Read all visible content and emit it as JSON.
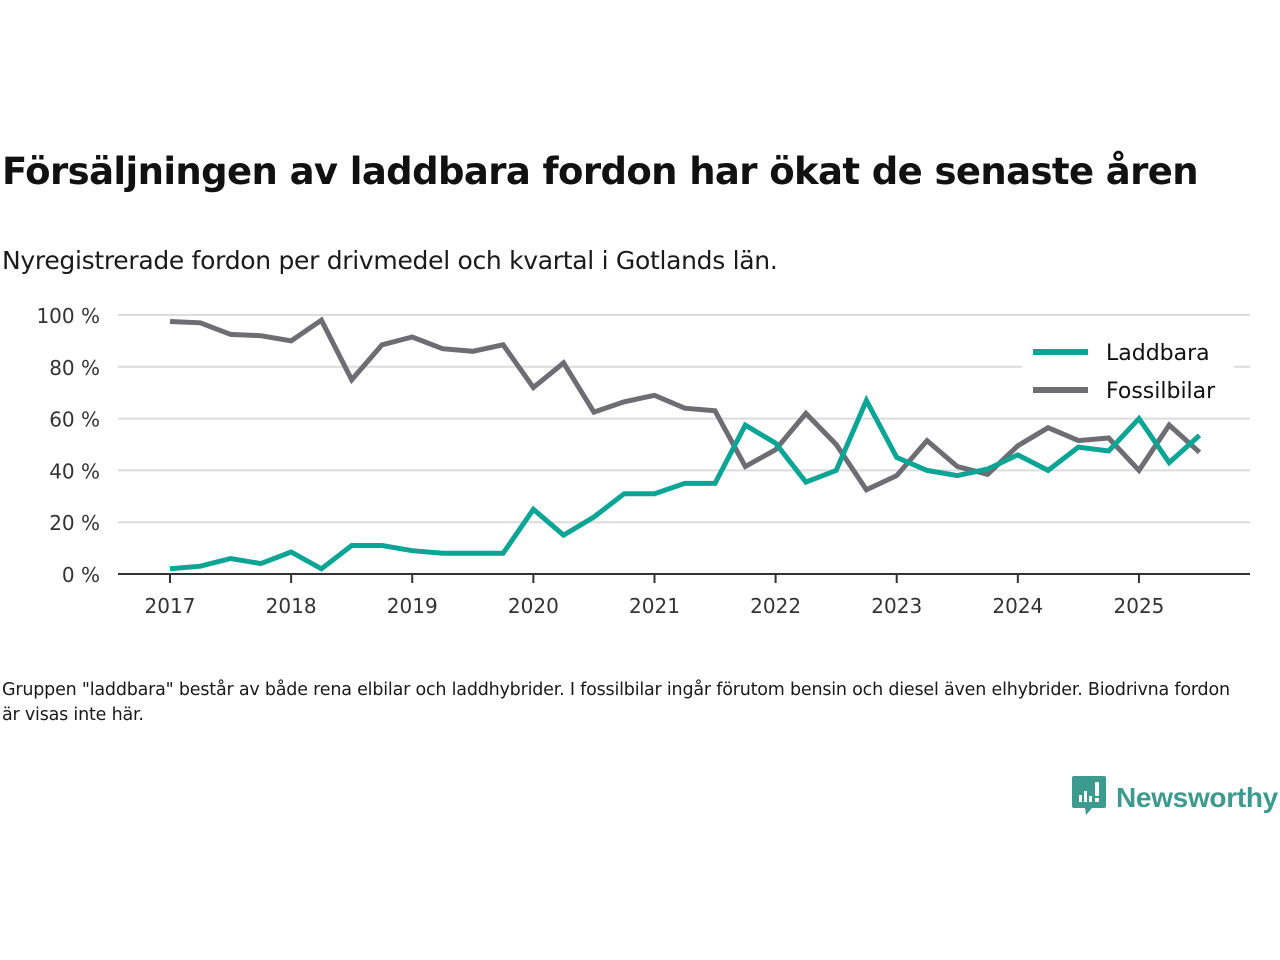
{
  "header": {
    "title": "Försäljningen av laddbara fordon har ökat de senaste åren",
    "subtitle": "Nyregistrerade fordon per drivmedel och kvartal i Gotlands län."
  },
  "footer": {
    "note": "Gruppen \"laddbara\" består av både rena elbilar och laddhybrider. I fossilbilar ingår förutom bensin och diesel även elhybrider. Biodrivna fordon är visas inte här.",
    "brand": "Newsworthy",
    "brand_icon": "newsworthy-logo-icon"
  },
  "chart_data": {
    "type": "line",
    "title": "Försäljningen av laddbara fordon har ökat de senaste åren",
    "subtitle": "Nyregistrerade fordon per drivmedel och kvartal i Gotlands län.",
    "xlabel": "",
    "ylabel": "",
    "x": [
      "2017Q1",
      "2017Q2",
      "2017Q3",
      "2017Q4",
      "2018Q1",
      "2018Q2",
      "2018Q3",
      "2018Q4",
      "2019Q1",
      "2019Q2",
      "2019Q3",
      "2019Q4",
      "2020Q1",
      "2020Q2",
      "2020Q3",
      "2020Q4",
      "2021Q1",
      "2021Q2",
      "2021Q3",
      "2021Q4",
      "2022Q1",
      "2022Q2",
      "2022Q3",
      "2022Q4",
      "2023Q1",
      "2023Q2",
      "2023Q3",
      "2023Q4",
      "2024Q1",
      "2024Q2",
      "2024Q3",
      "2024Q4",
      "2025Q1",
      "2025Q2",
      "2025Q3"
    ],
    "x_ticks": [
      "2017",
      "2018",
      "2019",
      "2020",
      "2021",
      "2022",
      "2023",
      "2024",
      "2025"
    ],
    "y_ticks": [
      "0 %",
      "20 %",
      "40 %",
      "60 %",
      "80 %",
      "100 %"
    ],
    "y_tick_values": [
      0,
      20,
      40,
      60,
      80,
      100
    ],
    "ylim": [
      0,
      100
    ],
    "grid": true,
    "legend_position": "top-right",
    "series": [
      {
        "name": "Laddbara",
        "color": "#0ba596",
        "values": [
          2,
          3,
          6,
          4,
          8.5,
          2,
          11,
          11,
          9,
          8,
          8,
          8,
          25,
          15,
          22,
          31,
          31,
          35,
          35,
          57.5,
          50.5,
          35.5,
          40,
          67,
          45,
          40,
          38,
          40.5,
          46,
          40,
          49,
          47.5,
          60,
          43,
          53.5
        ]
      },
      {
        "name": "Fossilbilar",
        "color": "#6e6d73",
        "values": [
          97.5,
          97,
          92.5,
          92,
          90,
          98,
          75,
          88.5,
          91.5,
          87,
          86,
          88.5,
          72,
          81.5,
          62.5,
          66.5,
          69,
          64,
          63,
          41.5,
          48,
          62,
          50,
          32.5,
          38,
          51.5,
          41.5,
          38.5,
          49.5,
          56.5,
          51.5,
          52.5,
          40,
          57.5,
          47
        ]
      }
    ]
  }
}
